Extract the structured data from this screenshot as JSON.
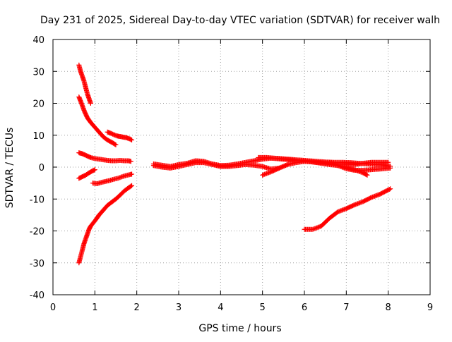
{
  "chart_data": {
    "type": "scatter",
    "title": "Day 231 of 2025, Sidereal Day-to-day VTEC variation (SDTVAR) for receiver walh",
    "xlabel": "GPS time / hours",
    "ylabel": "SDTVAR / TECUs",
    "xlim": [
      0,
      9
    ],
    "ylim": [
      -40,
      40
    ],
    "x_ticks": [
      0,
      1,
      2,
      3,
      4,
      5,
      6,
      7,
      8,
      9
    ],
    "y_ticks": [
      -40,
      -30,
      -20,
      -10,
      0,
      10,
      20,
      30,
      40
    ],
    "x_tick_labels": [
      "0",
      "1",
      "2",
      "3",
      "4",
      "5",
      "6",
      "7",
      "8",
      "9"
    ],
    "y_tick_labels": [
      "-40",
      "-30",
      "-20",
      "-10",
      "0",
      "10",
      "20",
      "30",
      "40"
    ],
    "grid": true,
    "marker": "+",
    "color": "#ff0000",
    "series": [
      {
        "segments": [
          [
            [
              0.62,
              32
            ],
            [
              0.66,
              30
            ],
            [
              0.7,
              28.5
            ],
            [
              0.74,
              27
            ],
            [
              0.78,
              25
            ],
            [
              0.82,
              23
            ],
            [
              0.86,
              21.5
            ],
            [
              0.9,
              20
            ]
          ],
          [
            [
              0.62,
              22
            ],
            [
              0.68,
              20
            ],
            [
              0.75,
              17.5
            ],
            [
              0.82,
              15.5
            ],
            [
              0.9,
              14
            ],
            [
              1.0,
              12.5
            ],
            [
              1.1,
              11
            ],
            [
              1.2,
              9.5
            ],
            [
              1.3,
              8.5
            ],
            [
              1.4,
              7.8
            ],
            [
              1.5,
              7
            ]
          ],
          [
            [
              1.3,
              11
            ],
            [
              1.38,
              10.6
            ],
            [
              1.45,
              10.2
            ],
            [
              1.52,
              9.8
            ],
            [
              1.6,
              9.6
            ],
            [
              1.68,
              9.4
            ],
            [
              1.76,
              9.2
            ],
            [
              1.84,
              8.8
            ],
            [
              1.88,
              8.5
            ]
          ],
          [
            [
              0.62,
              4.5
            ],
            [
              0.7,
              4.2
            ],
            [
              0.8,
              3.6
            ],
            [
              0.9,
              3
            ],
            [
              1.0,
              2.7
            ],
            [
              1.1,
              2.5
            ],
            [
              1.2,
              2.3
            ],
            [
              1.3,
              2.1
            ],
            [
              1.4,
              2
            ],
            [
              1.5,
              2
            ],
            [
              1.6,
              2.1
            ],
            [
              1.7,
              2
            ],
            [
              1.8,
              2
            ],
            [
              1.86,
              1.8
            ]
          ],
          [
            [
              0.62,
              -3.5
            ],
            [
              0.7,
              -3
            ],
            [
              0.78,
              -2.5
            ],
            [
              0.86,
              -1.8
            ],
            [
              0.94,
              -1.2
            ],
            [
              1.0,
              -0.8
            ]
          ],
          [
            [
              0.95,
              -5
            ],
            [
              1.05,
              -5.2
            ],
            [
              1.15,
              -4.8
            ],
            [
              1.25,
              -4.5
            ],
            [
              1.35,
              -4.2
            ],
            [
              1.45,
              -3.8
            ],
            [
              1.55,
              -3.5
            ],
            [
              1.65,
              -3
            ],
            [
              1.75,
              -2.6
            ],
            [
              1.85,
              -2.3
            ],
            [
              1.88,
              -2.2
            ]
          ],
          [
            [
              0.62,
              -30
            ],
            [
              0.66,
              -28
            ],
            [
              0.7,
              -26
            ],
            [
              0.74,
              -24
            ],
            [
              0.78,
              -22.5
            ],
            [
              0.82,
              -21
            ],
            [
              0.86,
              -19.5
            ],
            [
              0.9,
              -18.5
            ],
            [
              0.96,
              -17.5
            ],
            [
              1.02,
              -16.5
            ],
            [
              1.1,
              -15
            ],
            [
              1.2,
              -13.5
            ],
            [
              1.3,
              -12
            ],
            [
              1.4,
              -11
            ],
            [
              1.5,
              -10
            ],
            [
              1.6,
              -8.8
            ],
            [
              1.7,
              -7.5
            ],
            [
              1.8,
              -6.5
            ],
            [
              1.88,
              -5.8
            ]
          ]
        ]
      },
      {
        "segments": [
          [
            [
              2.4,
              1
            ],
            [
              2.6,
              0.6
            ],
            [
              2.8,
              0.2
            ],
            [
              3.0,
              0.8
            ],
            [
              3.2,
              1.2
            ],
            [
              3.4,
              2
            ],
            [
              3.6,
              1.8
            ],
            [
              3.8,
              1
            ],
            [
              4.0,
              0.5
            ],
            [
              4.2,
              0.6
            ],
            [
              4.4,
              1
            ],
            [
              4.6,
              1.5
            ],
            [
              4.8,
              2
            ],
            [
              5.0,
              2.5
            ],
            [
              5.2,
              2.8
            ],
            [
              5.4,
              2.6
            ],
            [
              5.6,
              2.4
            ],
            [
              5.8,
              2
            ],
            [
              6.0,
              2
            ],
            [
              6.2,
              1.6
            ],
            [
              6.4,
              1.4
            ],
            [
              6.6,
              1.2
            ],
            [
              6.8,
              1
            ],
            [
              7.0,
              1
            ],
            [
              7.2,
              0.8
            ],
            [
              7.4,
              1.2
            ],
            [
              7.6,
              1.5
            ],
            [
              7.8,
              1.5
            ],
            [
              8.0,
              1.5
            ]
          ],
          [
            [
              2.4,
              0.5
            ],
            [
              2.6,
              0
            ],
            [
              2.8,
              -0.3
            ],
            [
              3.0,
              0.2
            ],
            [
              3.2,
              0.8
            ],
            [
              3.4,
              1.4
            ],
            [
              3.6,
              1.4
            ],
            [
              3.8,
              0.8
            ],
            [
              4.0,
              0.2
            ],
            [
              4.2,
              0.2
            ],
            [
              4.4,
              0.5
            ],
            [
              4.6,
              0.8
            ],
            [
              4.8,
              0.6
            ],
            [
              5.0,
              0.2
            ],
            [
              5.2,
              -0.6
            ],
            [
              5.4,
              -0.3
            ]
          ],
          [
            [
              4.9,
              3
            ],
            [
              5.1,
              3
            ],
            [
              5.3,
              2.8
            ],
            [
              5.5,
              2.6
            ],
            [
              5.7,
              2.4
            ],
            [
              5.9,
              2.2
            ],
            [
              6.1,
              2
            ],
            [
              6.3,
              1.8
            ],
            [
              6.5,
              1.6
            ],
            [
              6.7,
              1.5
            ],
            [
              6.9,
              1.5
            ],
            [
              7.1,
              1.4
            ],
            [
              7.3,
              1.2
            ],
            [
              7.5,
              1
            ],
            [
              7.7,
              0.8
            ],
            [
              7.9,
              0.6
            ],
            [
              8.05,
              0.3
            ]
          ],
          [
            [
              5.0,
              -2.5
            ],
            [
              5.2,
              -1.5
            ],
            [
              5.4,
              -0.3
            ],
            [
              5.6,
              0.8
            ],
            [
              5.8,
              1.4
            ],
            [
              6.0,
              1.8
            ],
            [
              6.2,
              1.6
            ],
            [
              6.4,
              1.2
            ],
            [
              6.6,
              0.8
            ],
            [
              6.8,
              0.5
            ],
            [
              7.0,
              0
            ],
            [
              7.2,
              -0.8
            ],
            [
              7.4,
              -1.8
            ],
            [
              7.5,
              -2.5
            ]
          ],
          [
            [
              6.6,
              1.5
            ],
            [
              6.8,
              0.5
            ],
            [
              7.0,
              -0.5
            ],
            [
              7.2,
              -1
            ],
            [
              7.4,
              -1
            ],
            [
              7.6,
              -0.8
            ],
            [
              7.8,
              -0.6
            ],
            [
              8.05,
              -0.3
            ]
          ],
          [
            [
              6.0,
              -19.5
            ],
            [
              6.2,
              -19.5
            ],
            [
              6.4,
              -18.5
            ],
            [
              6.6,
              -16
            ],
            [
              6.8,
              -14
            ],
            [
              7.0,
              -13
            ],
            [
              7.2,
              -11.8
            ],
            [
              7.4,
              -10.8
            ],
            [
              7.6,
              -9.5
            ],
            [
              7.8,
              -8.5
            ],
            [
              8.05,
              -6.8
            ]
          ]
        ]
      }
    ]
  }
}
